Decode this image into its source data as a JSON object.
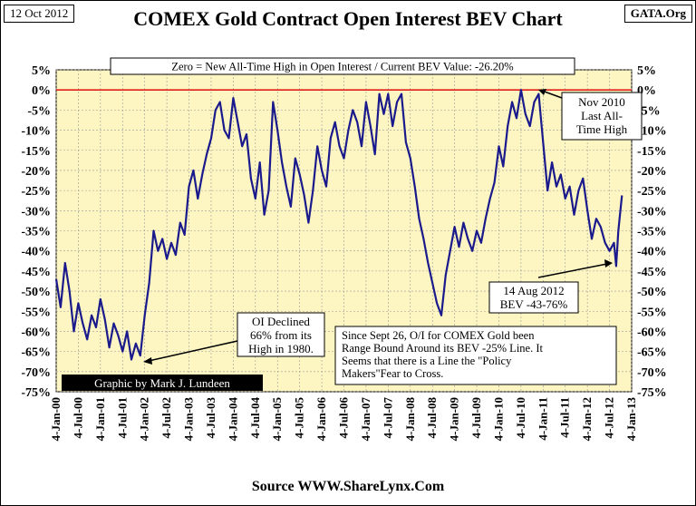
{
  "header": {
    "date": "12 Oct 2012",
    "title": "COMEX Gold Contract Open Interest BEV Chart",
    "site": "GATA.Org"
  },
  "footer": {
    "source": "Source WWW.ShareLynx.Com"
  },
  "colors": {
    "plot_bg": "#fdf6c3",
    "series": "#1a1a8c",
    "zero_line": "#e0201a",
    "grid": "#999999"
  },
  "chart_data": {
    "type": "line",
    "title": "COMEX Gold Contract Open Interest BEV Chart",
    "ylabel": "",
    "xlabel": "",
    "ylim": [
      -75,
      5
    ],
    "xlim": [
      2000.0,
      2013.0
    ],
    "y_ticks": [
      "5%",
      "0%",
      "-5%",
      "-10%",
      "-15%",
      "-20%",
      "-25%",
      "-30%",
      "-35%",
      "-40%",
      "-45%",
      "-50%",
      "-55%",
      "-60%",
      "-65%",
      "-70%",
      "-75%"
    ],
    "y_tick_values": [
      5,
      0,
      -5,
      -10,
      -15,
      -20,
      -25,
      -30,
      -35,
      -40,
      -45,
      -50,
      -55,
      -60,
      -65,
      -70,
      -75
    ],
    "x_ticks": [
      "4-Jan-00",
      "4-Jul-00",
      "4-Jan-01",
      "4-Jul-01",
      "4-Jan-02",
      "4-Jul-02",
      "4-Jan-03",
      "4-Jul-03",
      "4-Jan-04",
      "4-Jul-04",
      "4-Jan-05",
      "4-Jul-05",
      "4-Jan-06",
      "4-Jul-06",
      "4-Jan-07",
      "4-Jul-07",
      "4-Jan-08",
      "4-Jul-08",
      "4-Jan-09",
      "4-Jul-09",
      "4-Jan-10",
      "4-Jul-10",
      "4-Jan-11",
      "4-Jul-11",
      "4-Jan-12",
      "4-Jul-12",
      "4-Jan-13"
    ],
    "grid": true,
    "reference_line": {
      "y": 0,
      "label": "Zero = New All-Time High in Open Interest  /  Current BEV Value: -26.20%"
    },
    "series": [
      {
        "name": "COMEX Gold Open Interest BEV",
        "x": [
          2000.0,
          2000.1,
          2000.2,
          2000.3,
          2000.4,
          2000.5,
          2000.6,
          2000.7,
          2000.8,
          2000.9,
          2001.0,
          2001.1,
          2001.2,
          2001.3,
          2001.4,
          2001.5,
          2001.6,
          2001.7,
          2001.8,
          2001.9,
          2002.0,
          2002.1,
          2002.2,
          2002.3,
          2002.4,
          2002.5,
          2002.6,
          2002.7,
          2002.8,
          2002.9,
          2003.0,
          2003.1,
          2003.2,
          2003.3,
          2003.4,
          2003.5,
          2003.6,
          2003.7,
          2003.8,
          2003.9,
          2004.0,
          2004.1,
          2004.2,
          2004.3,
          2004.4,
          2004.5,
          2004.6,
          2004.7,
          2004.8,
          2004.9,
          2005.0,
          2005.1,
          2005.2,
          2005.3,
          2005.4,
          2005.5,
          2005.6,
          2005.7,
          2005.8,
          2005.9,
          2006.0,
          2006.1,
          2006.2,
          2006.3,
          2006.4,
          2006.5,
          2006.6,
          2006.7,
          2006.8,
          2006.9,
          2007.0,
          2007.1,
          2007.2,
          2007.3,
          2007.4,
          2007.5,
          2007.6,
          2007.7,
          2007.8,
          2007.9,
          2008.0,
          2008.1,
          2008.2,
          2008.3,
          2008.4,
          2008.5,
          2008.6,
          2008.7,
          2008.8,
          2008.9,
          2009.0,
          2009.1,
          2009.2,
          2009.3,
          2009.4,
          2009.5,
          2009.6,
          2009.7,
          2009.8,
          2009.9,
          2010.0,
          2010.1,
          2010.2,
          2010.3,
          2010.4,
          2010.5,
          2010.6,
          2010.7,
          2010.8,
          2010.9,
          2011.0,
          2011.1,
          2011.2,
          2011.3,
          2011.4,
          2011.5,
          2011.6,
          2011.7,
          2011.8,
          2011.9,
          2012.0,
          2012.1,
          2012.2,
          2012.3,
          2012.4,
          2012.5,
          2012.6,
          2012.65,
          2012.7,
          2012.78
        ],
        "values": [
          -47,
          -54,
          -43,
          -50,
          -60,
          -53,
          -58,
          -62,
          -56,
          -59,
          -52,
          -57,
          -64,
          -58,
          -61,
          -65,
          -60,
          -67,
          -63,
          -66,
          -56,
          -48,
          -35,
          -40,
          -37,
          -42,
          -38,
          -41,
          -33,
          -36,
          -24,
          -20,
          -27,
          -21,
          -16,
          -12,
          -5,
          -3,
          -10,
          -12,
          -2,
          -8,
          -14,
          -11,
          -22,
          -27,
          -18,
          -31,
          -25,
          -3,
          -10,
          -18,
          -24,
          -29,
          -17,
          -21,
          -26,
          -33,
          -25,
          -14,
          -20,
          -24,
          -12,
          -8,
          -14,
          -17,
          -10,
          -5,
          -8,
          -14,
          -3,
          -9,
          -16,
          -1,
          -6,
          -1,
          -9,
          -3,
          -1,
          -13,
          -17,
          -24,
          -32,
          -37,
          -43,
          -48,
          -53,
          -56,
          -46,
          -40,
          -34,
          -39,
          -33,
          -37,
          -40,
          -35,
          -38,
          -32,
          -27,
          -23,
          -14,
          -19,
          -9,
          -3,
          -7,
          0,
          -6,
          -9,
          -3,
          -1,
          -13,
          -25,
          -18,
          -24,
          -21,
          -27,
          -24,
          -31,
          -25,
          -22,
          -30,
          -37,
          -32,
          -34,
          -38,
          -40,
          -38,
          -43.76,
          -35,
          -26.2
        ]
      }
    ],
    "annotations": [
      {
        "id": "nov2010",
        "lines": [
          "Nov 2010",
          "Last All-",
          "Time High"
        ]
      },
      {
        "id": "aug2012",
        "lines": [
          "14 Aug 2012",
          "BEV -43-76%"
        ]
      },
      {
        "id": "decline",
        "lines": [
          "OI Declined",
          "66% from its",
          "High in 1980."
        ]
      },
      {
        "id": "rangebound",
        "lines": [
          "Since Sept 26, O/I for COMEX  Gold  been",
          "Range Bound Around its BEV -25% Line.  It",
          "Seems that there is a Line the \"Policy",
          "Makers\"Fear  to Cross."
        ]
      }
    ],
    "credit": "Graphic by Mark J. Lundeen"
  }
}
